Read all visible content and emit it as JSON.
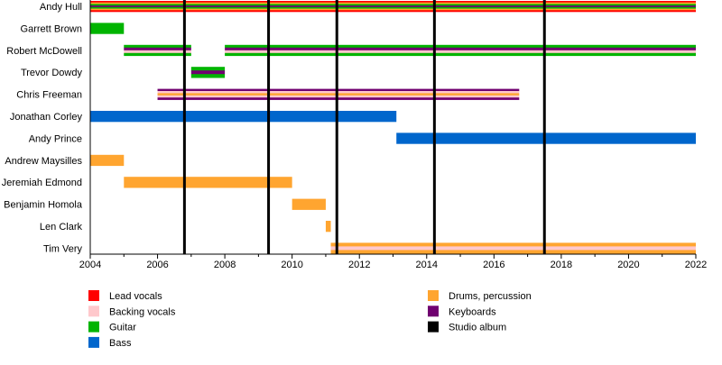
{
  "chart_data": {
    "type": "timeline",
    "title": "",
    "xlabel": "",
    "ylabel": "",
    "xlim": [
      2004,
      2022
    ],
    "x_ticks": [
      "2004",
      "2006",
      "2008",
      "2010",
      "2012",
      "2014",
      "2016",
      "2018",
      "2020",
      "2022"
    ],
    "roles": {
      "lead": {
        "label": "Lead vocals",
        "color": "#ff0000"
      },
      "backing": {
        "label": "Backing vocals",
        "color": "#ffc8cc"
      },
      "guitar": {
        "label": "Guitar",
        "color": "#00b400"
      },
      "bass": {
        "label": "Bass",
        "color": "#0066cc"
      },
      "drums": {
        "label": "Drums, percussion",
        "color": "#ffa530"
      },
      "keyboards": {
        "label": "Keyboards",
        "color": "#700070"
      },
      "album": {
        "label": "Studio album",
        "color": "#000000"
      }
    },
    "legend": {
      "left": [
        "lead",
        "backing",
        "guitar",
        "bass"
      ],
      "right": [
        "drums",
        "keyboards",
        "album"
      ],
      "placement": "bottom"
    },
    "members": [
      {
        "name": "Andy Hull",
        "spans": [
          {
            "start": 2004,
            "end": 2022,
            "stripes": [
              "lead",
              "drums",
              "guitar",
              "keyboards",
              "guitar",
              "drums",
              "lead"
            ]
          }
        ]
      },
      {
        "name": "Garrett Brown",
        "spans": [
          {
            "start": 2004,
            "end": 2005,
            "stripes": [
              "guitar"
            ]
          }
        ]
      },
      {
        "name": "Robert McDowell",
        "spans": [
          {
            "start": 2005,
            "end": 2007,
            "stripes": [
              "guitar",
              "keyboards",
              "backing",
              "guitar"
            ]
          },
          {
            "start": 2008,
            "end": 2022,
            "stripes": [
              "guitar",
              "keyboards",
              "backing",
              "guitar"
            ]
          }
        ]
      },
      {
        "name": "Trevor Dowdy",
        "spans": [
          {
            "start": 2007,
            "end": 2008,
            "stripes": [
              "guitar",
              "keyboards",
              "guitar"
            ]
          }
        ]
      },
      {
        "name": "Chris Freeman",
        "spans": [
          {
            "start": 2006,
            "end": 2016.75,
            "stripes": [
              "keyboards",
              "backing",
              "drums",
              "backing",
              "keyboards"
            ]
          }
        ]
      },
      {
        "name": "Jonathan Corley",
        "spans": [
          {
            "start": 2004,
            "end": 2013.1,
            "stripes": [
              "bass"
            ]
          }
        ]
      },
      {
        "name": "Andy Prince",
        "spans": [
          {
            "start": 2013.1,
            "end": 2022,
            "stripes": [
              "bass"
            ]
          }
        ]
      },
      {
        "name": "Andrew Maysilles",
        "spans": [
          {
            "start": 2004,
            "end": 2005,
            "stripes": [
              "drums"
            ]
          }
        ]
      },
      {
        "name": "Jeremiah Edmond",
        "spans": [
          {
            "start": 2005,
            "end": 2010,
            "stripes": [
              "drums"
            ]
          }
        ]
      },
      {
        "name": "Benjamin Homola",
        "spans": [
          {
            "start": 2010,
            "end": 2011,
            "stripes": [
              "drums"
            ]
          }
        ]
      },
      {
        "name": "Len Clark",
        "spans": [
          {
            "start": 2011,
            "end": 2011.15,
            "stripes": [
              "drums"
            ]
          }
        ]
      },
      {
        "name": "Tim Very",
        "spans": [
          {
            "start": 2011.15,
            "end": 2022,
            "stripes": [
              "drums",
              "backing",
              "drums"
            ]
          }
        ]
      }
    ],
    "albums": [
      2006.8,
      2009.3,
      2011.33,
      2014.23,
      2017.5
    ]
  }
}
